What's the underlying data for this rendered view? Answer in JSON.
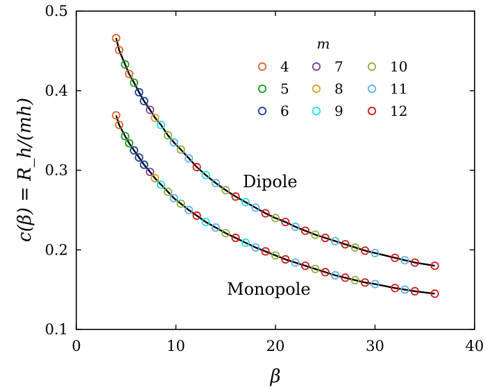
{
  "chart_data": {
    "type": "scatter",
    "xlabel": "β",
    "ylabel": "c(β) = R_h/(mh)",
    "xlim": [
      0,
      40
    ],
    "ylim": [
      0.1,
      0.5
    ],
    "x_ticks": [
      "0",
      "10",
      "20",
      "30",
      "40"
    ],
    "y_ticks": [
      "0.1",
      "0.2",
      "0.3",
      "0.4",
      "0.5"
    ],
    "grid": false,
    "legend": {
      "title": "m",
      "placement": "top-right",
      "columns": 3,
      "entries": [
        {
          "label": "4",
          "color": "#d9652a"
        },
        {
          "label": "5",
          "color": "#1aa31a"
        },
        {
          "label": "6",
          "color": "#1a3f9a"
        },
        {
          "label": "7",
          "color": "#7a3fa0"
        },
        {
          "label": "8",
          "color": "#e0a02a"
        },
        {
          "label": "9",
          "color": "#22e0e0"
        },
        {
          "label": "10",
          "color": "#8ab43a"
        },
        {
          "label": "11",
          "color": "#5ab4ea"
        },
        {
          "label": "12",
          "color": "#d01a1a"
        }
      ]
    },
    "annotations": [
      "Dipole",
      "Monopole"
    ],
    "series": [
      {
        "curve": "Dipole",
        "fit_line": "solid black",
        "points": [
          {
            "m": "4",
            "x": 4.0,
            "y": 0.466
          },
          {
            "m": "4",
            "x": 4.3,
            "y": 0.451
          },
          {
            "m": "5",
            "x": 4.9,
            "y": 0.433
          },
          {
            "m": "4",
            "x": 5.3,
            "y": 0.421
          },
          {
            "m": "5",
            "x": 5.8,
            "y": 0.41
          },
          {
            "m": "6",
            "x": 6.3,
            "y": 0.398
          },
          {
            "m": "6",
            "x": 6.8,
            "y": 0.387
          },
          {
            "m": "7",
            "x": 7.4,
            "y": 0.376
          },
          {
            "m": "8",
            "x": 7.9,
            "y": 0.366
          },
          {
            "m": "9",
            "x": 8.5,
            "y": 0.357
          },
          {
            "m": "10",
            "x": 9.2,
            "y": 0.344
          },
          {
            "m": "11",
            "x": 9.8,
            "y": 0.335
          },
          {
            "m": "10",
            "x": 10.5,
            "y": 0.326
          },
          {
            "m": "11",
            "x": 11.3,
            "y": 0.315
          },
          {
            "m": "12",
            "x": 12.1,
            "y": 0.304
          },
          {
            "m": "9",
            "x": 13.0,
            "y": 0.294
          },
          {
            "m": "11",
            "x": 14.0,
            "y": 0.284
          },
          {
            "m": "10",
            "x": 15.0,
            "y": 0.275
          },
          {
            "m": "12",
            "x": 16.0,
            "y": 0.267
          },
          {
            "m": "9",
            "x": 17.0,
            "y": 0.26
          },
          {
            "m": "11",
            "x": 18.0,
            "y": 0.253
          },
          {
            "m": "12",
            "x": 19.0,
            "y": 0.246
          },
          {
            "m": "10",
            "x": 20.0,
            "y": 0.24
          },
          {
            "m": "12",
            "x": 21.0,
            "y": 0.235
          },
          {
            "m": "11",
            "x": 22.0,
            "y": 0.229
          },
          {
            "m": "12",
            "x": 23.0,
            "y": 0.224
          },
          {
            "m": "10",
            "x": 24.0,
            "y": 0.219
          },
          {
            "m": "12",
            "x": 25.0,
            "y": 0.215
          },
          {
            "m": "11",
            "x": 26.0,
            "y": 0.211
          },
          {
            "m": "12",
            "x": 27.0,
            "y": 0.207
          },
          {
            "m": "10",
            "x": 28.0,
            "y": 0.203
          },
          {
            "m": "12",
            "x": 29.0,
            "y": 0.199
          },
          {
            "m": "11",
            "x": 30.0,
            "y": 0.196
          },
          {
            "m": "12",
            "x": 32.0,
            "y": 0.19
          },
          {
            "m": "11",
            "x": 33.0,
            "y": 0.187
          },
          {
            "m": "12",
            "x": 34.0,
            "y": 0.184
          },
          {
            "m": "12",
            "x": 36.0,
            "y": 0.18
          }
        ]
      },
      {
        "curve": "Monopole",
        "fit_line": "solid black",
        "points": [
          {
            "m": "4",
            "x": 4.0,
            "y": 0.369
          },
          {
            "m": "4",
            "x": 4.3,
            "y": 0.357
          },
          {
            "m": "5",
            "x": 4.9,
            "y": 0.343
          },
          {
            "m": "5",
            "x": 5.3,
            "y": 0.334
          },
          {
            "m": "6",
            "x": 5.8,
            "y": 0.325
          },
          {
            "m": "6",
            "x": 6.3,
            "y": 0.316
          },
          {
            "m": "6",
            "x": 6.8,
            "y": 0.307
          },
          {
            "m": "7",
            "x": 7.4,
            "y": 0.298
          },
          {
            "m": "8",
            "x": 7.9,
            "y": 0.29
          },
          {
            "m": "9",
            "x": 8.5,
            "y": 0.282
          },
          {
            "m": "10",
            "x": 9.2,
            "y": 0.273
          },
          {
            "m": "11",
            "x": 9.8,
            "y": 0.265
          },
          {
            "m": "10",
            "x": 10.5,
            "y": 0.258
          },
          {
            "m": "11",
            "x": 11.3,
            "y": 0.25
          },
          {
            "m": "12",
            "x": 12.1,
            "y": 0.243
          },
          {
            "m": "9",
            "x": 13.0,
            "y": 0.235
          },
          {
            "m": "11",
            "x": 14.0,
            "y": 0.228
          },
          {
            "m": "10",
            "x": 15.0,
            "y": 0.221
          },
          {
            "m": "12",
            "x": 16.0,
            "y": 0.215
          },
          {
            "m": "9",
            "x": 17.0,
            "y": 0.209
          },
          {
            "m": "11",
            "x": 18.0,
            "y": 0.203
          },
          {
            "m": "12",
            "x": 19.0,
            "y": 0.198
          },
          {
            "m": "10",
            "x": 20.0,
            "y": 0.193
          },
          {
            "m": "12",
            "x": 21.0,
            "y": 0.188
          },
          {
            "m": "11",
            "x": 22.0,
            "y": 0.184
          },
          {
            "m": "12",
            "x": 23.0,
            "y": 0.18
          },
          {
            "m": "10",
            "x": 24.0,
            "y": 0.176
          },
          {
            "m": "12",
            "x": 25.0,
            "y": 0.172
          },
          {
            "m": "11",
            "x": 26.0,
            "y": 0.168
          },
          {
            "m": "12",
            "x": 27.0,
            "y": 0.165
          },
          {
            "m": "10",
            "x": 28.0,
            "y": 0.162
          },
          {
            "m": "12",
            "x": 29.0,
            "y": 0.159
          },
          {
            "m": "11",
            "x": 30.0,
            "y": 0.157
          },
          {
            "m": "12",
            "x": 32.0,
            "y": 0.152
          },
          {
            "m": "11",
            "x": 33.0,
            "y": 0.15
          },
          {
            "m": "12",
            "x": 34.0,
            "y": 0.148
          },
          {
            "m": "12",
            "x": 36.0,
            "y": 0.145
          }
        ]
      }
    ]
  }
}
